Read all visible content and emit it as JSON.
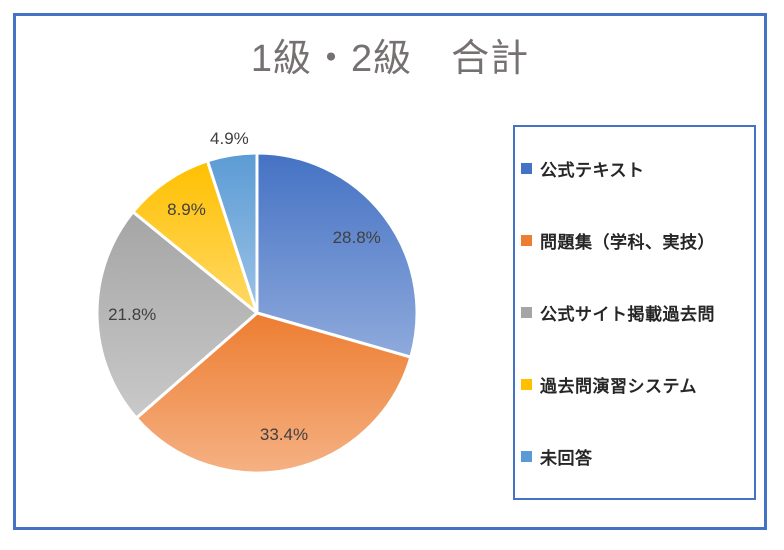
{
  "frame": {
    "border_color": "#4472C4"
  },
  "chart_data": {
    "type": "pie",
    "title": "1級・2級　合計",
    "title_color": "#767171",
    "legend_position": "right",
    "legend_border_color": "#4472C4",
    "legend_text_color": "#262626",
    "start_angle_deg": 0,
    "direction": "clockwise",
    "slice_border_color": "#FFFFFF",
    "data_label_color": "#404040",
    "series": [
      {
        "label": "公式テキスト",
        "value": 28.8,
        "display": "28.8%",
        "color": "#4472C4",
        "color_light": "#8FAADC",
        "label_inside": true
      },
      {
        "label": "問題集（学科、実技）",
        "value": 33.4,
        "display": "33.4%",
        "color": "#ED7D31",
        "color_light": "#F5B183",
        "label_inside": true
      },
      {
        "label": "公式サイト掲載過去問",
        "value": 21.8,
        "display": "21.8%",
        "color": "#A5A5A5",
        "color_light": "#C9C9C9",
        "label_inside": true
      },
      {
        "label": "過去問演習システム",
        "value": 8.9,
        "display": "8.9%",
        "color": "#FFC000",
        "color_light": "#FFD966",
        "label_inside": true
      },
      {
        "label": "未回答",
        "value": 4.9,
        "display": "4.9%",
        "color": "#5B9BD5",
        "color_light": "#9DC3E6",
        "label_inside": false
      }
    ]
  }
}
